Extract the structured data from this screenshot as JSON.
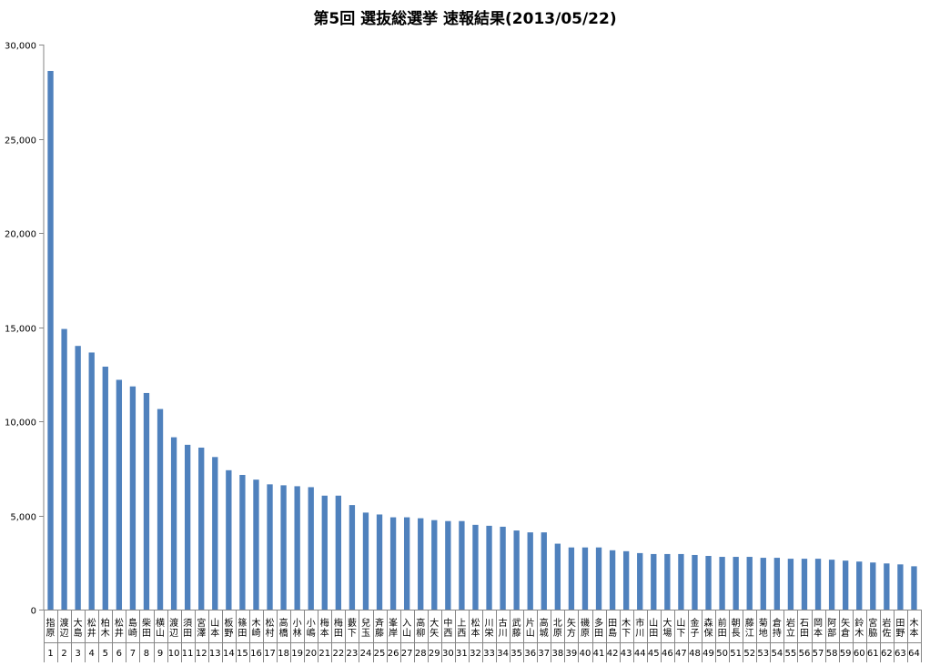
{
  "chart_data": {
    "type": "bar",
    "title": "第5回 選抜総選挙 速報結果(2013/05/22)",
    "xlabel": "",
    "ylabel": "",
    "ylim": [
      0,
      30000
    ],
    "yticks": [
      "0",
      "5,000",
      "10,000",
      "15,000",
      "20,000",
      "25,000",
      "30,000"
    ],
    "ytick_values": [
      0,
      5000,
      10000,
      15000,
      20000,
      25000,
      30000
    ],
    "grid": false,
    "legend": "none",
    "bar_color": "#4f81bd",
    "ranks": [
      "1",
      "2",
      "3",
      "4",
      "5",
      "6",
      "7",
      "8",
      "9",
      "10",
      "11",
      "12",
      "13",
      "14",
      "15",
      "16",
      "17",
      "18",
      "19",
      "20",
      "21",
      "22",
      "23",
      "24",
      "25",
      "26",
      "27",
      "28",
      "29",
      "30",
      "31",
      "32",
      "33",
      "34",
      "35",
      "36",
      "37",
      "38",
      "39",
      "40",
      "41",
      "42",
      "43",
      "44",
      "45",
      "46",
      "47",
      "48",
      "49",
      "50",
      "51",
      "52",
      "53",
      "54",
      "55",
      "56",
      "57",
      "58",
      "59",
      "60",
      "61",
      "62",
      "63",
      "64"
    ],
    "categories": [
      "指原",
      "渡辺",
      "大島",
      "松井",
      "柏木",
      "松井",
      "島崎",
      "柴田",
      "横山",
      "渡辺",
      "須田",
      "宮澤",
      "山本",
      "板野",
      "篠田",
      "木崎",
      "松村",
      "高橋",
      "小林",
      "小嶋",
      "梅本",
      "梅田",
      "藪下",
      "兒玉",
      "斉藤",
      "峯岸",
      "入山",
      "高柳",
      "大矢",
      "中西",
      "上西",
      "松本",
      "川栄",
      "古川",
      "武藤",
      "片山",
      "高城",
      "北原",
      "矢方",
      "磯原",
      "多田",
      "田島",
      "木下",
      "市川",
      "山田",
      "大場",
      "山下",
      "金子",
      "森保",
      "前田",
      "朝長",
      "藤江",
      "菊地",
      "倉持",
      "岩立",
      "石田",
      "岡本",
      "阿部",
      "矢倉",
      "鈴木",
      "宮脇",
      "岩佐",
      "田野",
      "木本"
    ],
    "values": [
      28600,
      14900,
      14000,
      13650,
      12900,
      12200,
      11850,
      11500,
      10650,
      9150,
      8750,
      8600,
      8100,
      7400,
      7150,
      6900,
      6650,
      6600,
      6550,
      6500,
      6050,
      6050,
      5550,
      5150,
      5050,
      4900,
      4900,
      4850,
      4750,
      4700,
      4700,
      4500,
      4450,
      4400,
      4200,
      4100,
      4100,
      3500,
      3300,
      3300,
      3300,
      3150,
      3100,
      3000,
      2950,
      2950,
      2950,
      2900,
      2850,
      2800,
      2800,
      2800,
      2750,
      2750,
      2700,
      2700,
      2700,
      2650,
      2600,
      2550,
      2500,
      2450,
      2400,
      2300
    ]
  }
}
